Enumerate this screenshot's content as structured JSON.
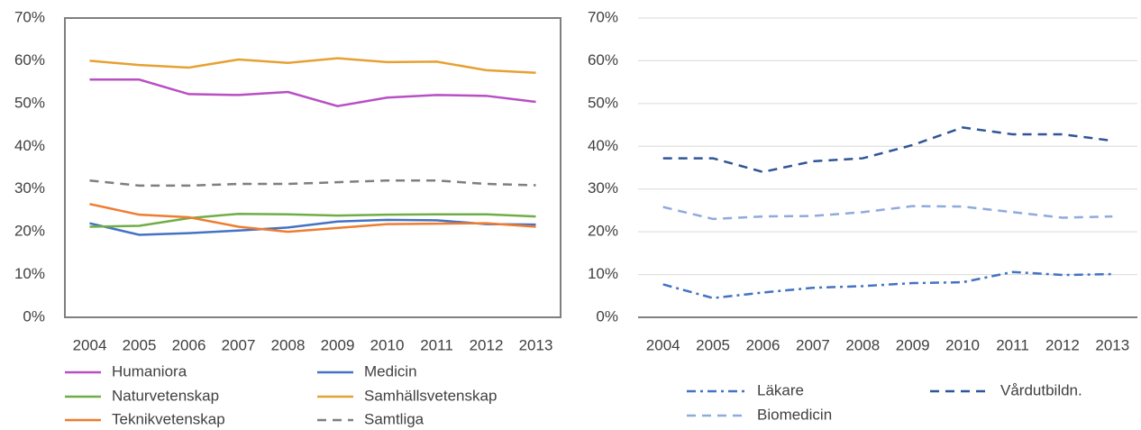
{
  "chart_data": [
    {
      "type": "line",
      "frame": true,
      "grid": false,
      "categories": [
        "2004",
        "2005",
        "2006",
        "2007",
        "2008",
        "2009",
        "2010",
        "2011",
        "2012",
        "2013"
      ],
      "ylim": [
        0,
        70
      ],
      "yticks": [
        {
          "value": 0,
          "label": "0%"
        },
        {
          "value": 10,
          "label": "10%"
        },
        {
          "value": 20,
          "label": "20%"
        },
        {
          "value": 30,
          "label": "30%"
        },
        {
          "value": 40,
          "label": "40%"
        },
        {
          "value": 50,
          "label": "50%"
        },
        {
          "value": 60,
          "label": "60%"
        },
        {
          "value": 70,
          "label": "70%"
        }
      ],
      "series": [
        {
          "name": "Humaniora",
          "color": "#b84fc4",
          "dash": "solid",
          "values": [
            55.6,
            55.6,
            52.2,
            52.0,
            52.7,
            49.4,
            51.4,
            52.0,
            51.8,
            50.4
          ]
        },
        {
          "name": "Medicin",
          "color": "#4472c4",
          "dash": "solid",
          "values": [
            22.0,
            19.3,
            19.7,
            20.3,
            21.0,
            22.4,
            22.8,
            22.7,
            21.8,
            21.7
          ]
        },
        {
          "name": "Naturvetenskap",
          "color": "#70ad47",
          "dash": "solid",
          "values": [
            21.2,
            21.4,
            23.2,
            24.2,
            24.1,
            23.8,
            24.0,
            24.1,
            24.1,
            23.6
          ]
        },
        {
          "name": "Samhällsvetenskap",
          "color": "#e6a133",
          "dash": "solid",
          "values": [
            60.0,
            59.0,
            58.4,
            60.3,
            59.5,
            60.6,
            59.7,
            59.8,
            57.8,
            57.2
          ]
        },
        {
          "name": "Teknikvetenskap",
          "color": "#ed7d31",
          "dash": "solid",
          "values": [
            26.5,
            24.0,
            23.4,
            21.2,
            20.0,
            20.9,
            21.8,
            21.9,
            22.0,
            21.2
          ]
        },
        {
          "name": "Samtliga",
          "color": "#7f7f7f",
          "dash": "dash",
          "values": [
            32.0,
            30.8,
            30.8,
            31.2,
            31.2,
            31.6,
            32.0,
            32.0,
            31.2,
            30.9
          ]
        }
      ]
    },
    {
      "type": "line",
      "frame": false,
      "grid": true,
      "categories": [
        "2004",
        "2005",
        "2006",
        "2007",
        "2008",
        "2009",
        "2010",
        "2011",
        "2012",
        "2013"
      ],
      "ylim": [
        0,
        70
      ],
      "yticks": [
        {
          "value": 0,
          "label": "0%"
        },
        {
          "value": 10,
          "label": "10%"
        },
        {
          "value": 20,
          "label": "20%"
        },
        {
          "value": 30,
          "label": "30%"
        },
        {
          "value": 40,
          "label": "40%"
        },
        {
          "value": 50,
          "label": "50%"
        },
        {
          "value": 60,
          "label": "60%"
        },
        {
          "value": 70,
          "label": "70%"
        }
      ],
      "series": [
        {
          "name": "Läkare",
          "color": "#4472c4",
          "dash": "dash-dot",
          "values": [
            7.7,
            4.5,
            5.8,
            6.9,
            7.3,
            8.0,
            8.2,
            10.6,
            9.9,
            10.1
          ]
        },
        {
          "name": "Vårdutbildn.",
          "color": "#2f5597",
          "dash": "dash",
          "values": [
            37.2,
            37.2,
            34.0,
            36.5,
            37.2,
            40.3,
            44.4,
            42.8,
            42.8,
            41.3
          ]
        },
        {
          "name": "Biomedicin",
          "color": "#8faadc",
          "dash": "dash",
          "values": [
            25.8,
            23.0,
            23.6,
            23.7,
            24.6,
            26.0,
            25.9,
            24.6,
            23.3,
            23.6
          ]
        }
      ]
    }
  ]
}
